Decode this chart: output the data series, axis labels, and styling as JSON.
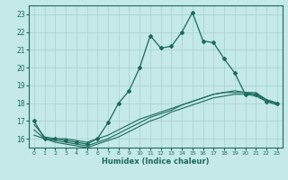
{
  "xlabel": "Humidex (Indice chaleur)",
  "ylabel": "",
  "bg_color": "#c5e8e8",
  "grid_color": "#a8d0d0",
  "line_color": "#1a6b5a",
  "xlim": [
    -0.5,
    23.5
  ],
  "ylim": [
    15.5,
    23.5
  ],
  "xticks": [
    0,
    1,
    2,
    3,
    4,
    5,
    6,
    7,
    8,
    9,
    10,
    11,
    12,
    13,
    14,
    15,
    16,
    17,
    18,
    19,
    20,
    21,
    22,
    23
  ],
  "yticks": [
    16,
    17,
    18,
    19,
    20,
    21,
    22,
    23
  ],
  "series_main": {
    "x": [
      0,
      1,
      2,
      3,
      4,
      5,
      6,
      7,
      8,
      9,
      10,
      11,
      12,
      13,
      14,
      15,
      16,
      17,
      18,
      19,
      20,
      21,
      22,
      23
    ],
    "y": [
      17.0,
      16.0,
      16.0,
      15.9,
      15.8,
      15.7,
      16.0,
      16.9,
      18.0,
      18.7,
      20.0,
      21.8,
      21.1,
      21.2,
      22.0,
      23.1,
      21.5,
      21.4,
      20.5,
      19.7,
      18.5,
      18.5,
      18.1,
      18.0
    ]
  },
  "series_smooth1": {
    "x": [
      0,
      1,
      2,
      3,
      4,
      5,
      6,
      7,
      8,
      9,
      10,
      11,
      12,
      13,
      14,
      15,
      16,
      17,
      18,
      19,
      20,
      21,
      22,
      23
    ],
    "y": [
      16.8,
      16.1,
      16.0,
      16.0,
      15.9,
      15.8,
      16.0,
      16.2,
      16.5,
      16.8,
      17.1,
      17.3,
      17.5,
      17.7,
      17.9,
      18.1,
      18.3,
      18.5,
      18.6,
      18.7,
      18.6,
      18.6,
      18.2,
      18.0
    ]
  },
  "series_smooth2": {
    "x": [
      0,
      1,
      2,
      3,
      4,
      5,
      6,
      7,
      8,
      9,
      10,
      11,
      12,
      13,
      14,
      15,
      16,
      17,
      18,
      19,
      20,
      21,
      22,
      23
    ],
    "y": [
      16.5,
      16.0,
      15.9,
      15.8,
      15.7,
      15.6,
      15.8,
      16.0,
      16.3,
      16.6,
      16.9,
      17.2,
      17.4,
      17.6,
      17.9,
      18.1,
      18.3,
      18.5,
      18.6,
      18.6,
      18.6,
      18.5,
      18.2,
      18.0
    ]
  },
  "series_smooth3": {
    "x": [
      0,
      1,
      2,
      3,
      4,
      5,
      6,
      7,
      8,
      9,
      10,
      11,
      12,
      13,
      14,
      15,
      16,
      17,
      18,
      19,
      20,
      21,
      22,
      23
    ],
    "y": [
      16.2,
      16.0,
      15.8,
      15.7,
      15.6,
      15.5,
      15.7,
      15.9,
      16.1,
      16.4,
      16.7,
      17.0,
      17.2,
      17.5,
      17.7,
      17.9,
      18.1,
      18.3,
      18.4,
      18.5,
      18.5,
      18.4,
      18.1,
      17.9
    ]
  }
}
